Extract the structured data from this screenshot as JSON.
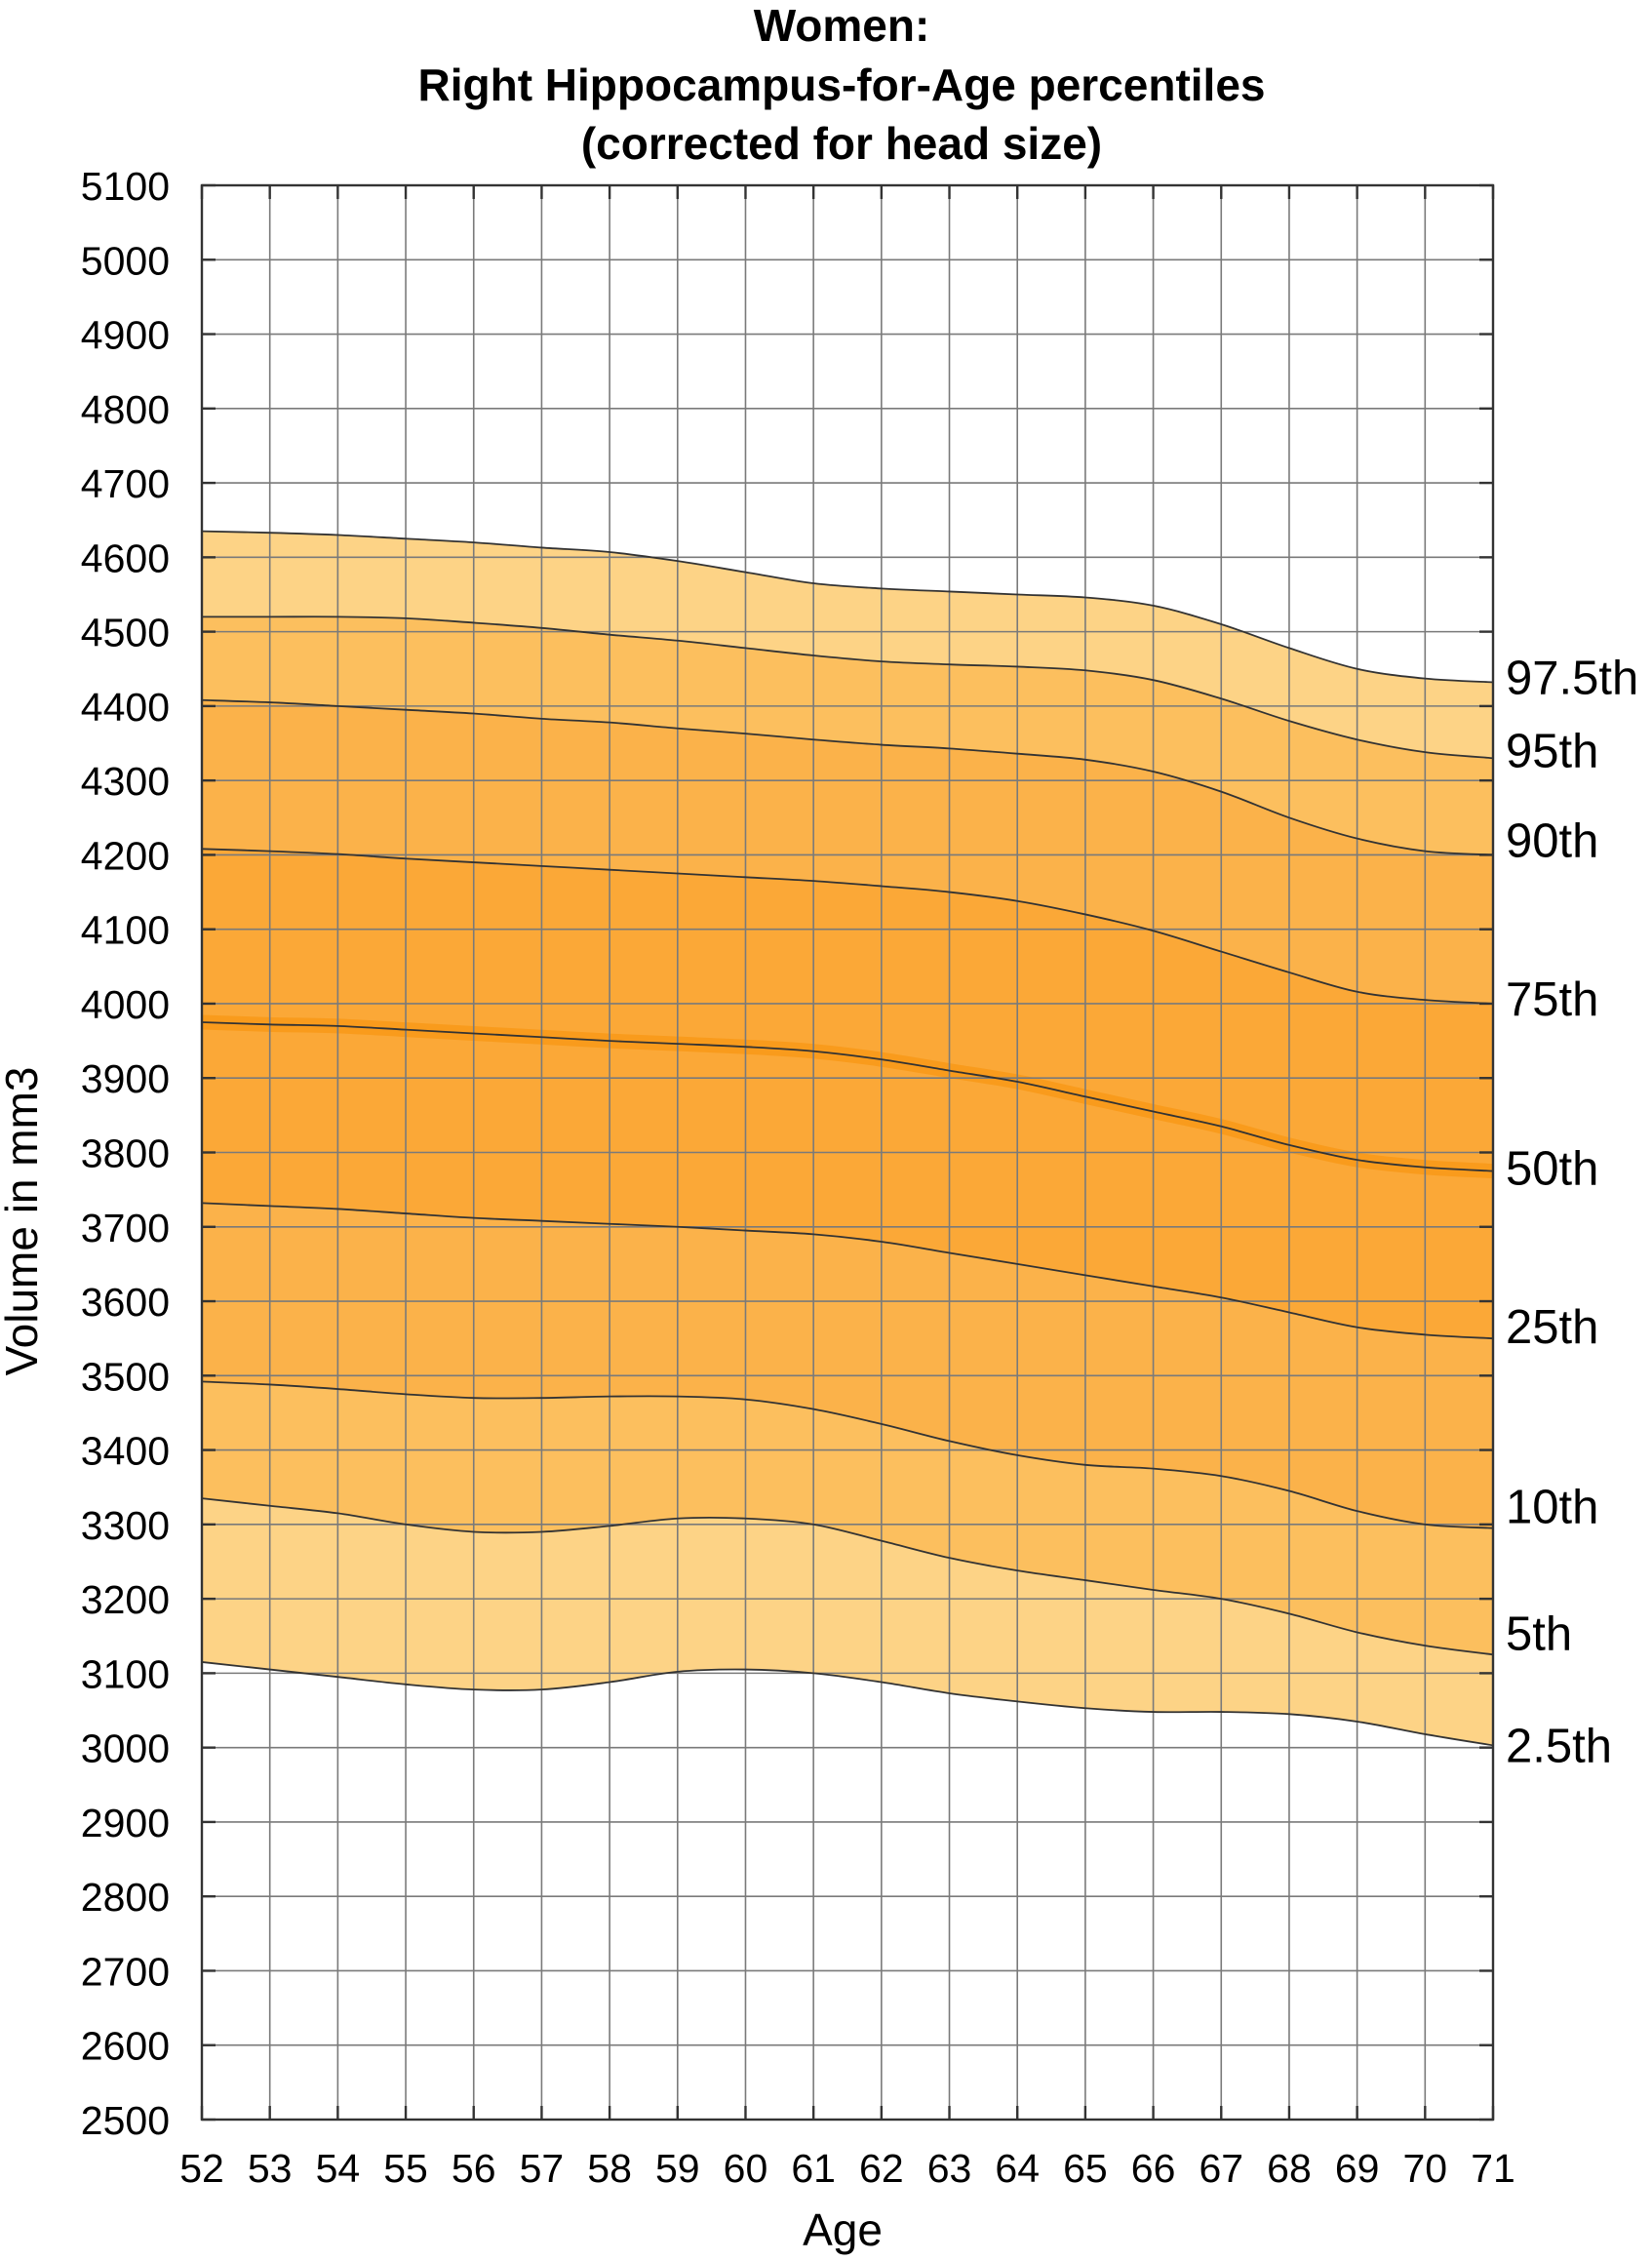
{
  "chart_data": {
    "type": "area",
    "title_lines": [
      "Women:",
      "Right Hippocampus-for-Age percentiles",
      "(corrected for head size)"
    ],
    "xlabel": "Age",
    "ylabel": "Volume in mm3",
    "xlim": [
      52,
      71
    ],
    "ylim": [
      2500,
      5100
    ],
    "x_ticks": [
      52,
      53,
      54,
      55,
      56,
      57,
      58,
      59,
      60,
      61,
      62,
      63,
      64,
      65,
      66,
      67,
      68,
      69,
      70,
      71
    ],
    "y_ticks": [
      2500,
      2600,
      2700,
      2800,
      2900,
      3000,
      3100,
      3200,
      3300,
      3400,
      3500,
      3600,
      3700,
      3800,
      3900,
      4000,
      4100,
      4200,
      4300,
      4400,
      4500,
      4600,
      4700,
      4800,
      4900,
      5000,
      5100
    ],
    "grid": true,
    "x": [
      52,
      53,
      54,
      55,
      56,
      57,
      58,
      59,
      60,
      61,
      62,
      63,
      64,
      65,
      66,
      67,
      68,
      69,
      70,
      71
    ],
    "series": [
      {
        "name": "2.5th",
        "values": [
          3115,
          3105,
          3095,
          3085,
          3078,
          3078,
          3088,
          3102,
          3105,
          3100,
          3088,
          3073,
          3062,
          3053,
          3048,
          3048,
          3045,
          3035,
          3018,
          3003
        ]
      },
      {
        "name": "5th",
        "values": [
          3335,
          3325,
          3315,
          3300,
          3290,
          3290,
          3298,
          3308,
          3308,
          3300,
          3278,
          3255,
          3238,
          3225,
          3212,
          3200,
          3180,
          3155,
          3137,
          3125
        ]
      },
      {
        "name": "10th",
        "values": [
          3492,
          3488,
          3482,
          3475,
          3470,
          3470,
          3472,
          3472,
          3468,
          3455,
          3435,
          3412,
          3393,
          3380,
          3375,
          3365,
          3345,
          3318,
          3300,
          3295
        ]
      },
      {
        "name": "25th",
        "values": [
          3732,
          3728,
          3724,
          3718,
          3712,
          3708,
          3704,
          3700,
          3695,
          3690,
          3680,
          3665,
          3650,
          3635,
          3620,
          3605,
          3585,
          3565,
          3555,
          3550
        ]
      },
      {
        "name": "50th",
        "values": [
          3975,
          3972,
          3970,
          3965,
          3960,
          3955,
          3950,
          3946,
          3942,
          3936,
          3925,
          3910,
          3895,
          3875,
          3855,
          3835,
          3810,
          3790,
          3780,
          3775
        ]
      },
      {
        "name": "75th",
        "values": [
          4208,
          4205,
          4201,
          4195,
          4190,
          4185,
          4180,
          4175,
          4170,
          4165,
          4158,
          4150,
          4138,
          4120,
          4098,
          4070,
          4042,
          4016,
          4005,
          4000
        ]
      },
      {
        "name": "90th",
        "values": [
          4408,
          4405,
          4400,
          4395,
          4390,
          4383,
          4378,
          4370,
          4363,
          4355,
          4348,
          4343,
          4336,
          4328,
          4312,
          4285,
          4250,
          4222,
          4205,
          4200
        ]
      },
      {
        "name": "95th",
        "values": [
          4520,
          4520,
          4520,
          4518,
          4512,
          4505,
          4496,
          4488,
          4478,
          4468,
          4460,
          4456,
          4453,
          4448,
          4435,
          4410,
          4380,
          4355,
          4338,
          4330
        ]
      },
      {
        "name": "97.5th",
        "values": [
          4635,
          4633,
          4630,
          4625,
          4620,
          4613,
          4607,
          4595,
          4580,
          4565,
          4558,
          4554,
          4550,
          4546,
          4535,
          4510,
          4478,
          4450,
          4437,
          4432
        ]
      }
    ],
    "band_colors": [
      "#fdd386",
      "#fcbf5e",
      "#fbb24a",
      "#fba837",
      "#fba837",
      "#fbb24a",
      "#fcbf5e",
      "#fdd386"
    ],
    "median_band_color": "#f99b1c"
  }
}
